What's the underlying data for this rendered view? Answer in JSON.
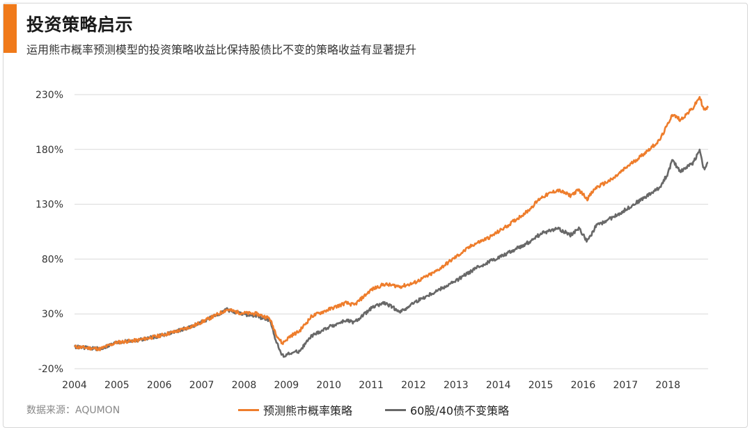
{
  "header": {
    "title": "投资策略启示",
    "subtitle": "运用熊市概率预测模型的投资策略收益比保持股债比不变的策略收益有显著提升"
  },
  "footer": {
    "source": "数据来源：AQUMON"
  },
  "colors": {
    "accent": "#f07a1a",
    "series_orange": "#ee7d2c",
    "series_gray": "#686868",
    "grid": "#d9d9d9"
  },
  "chart_data": {
    "type": "line",
    "title": "",
    "xlabel": "",
    "ylabel": "",
    "x_ticks": [
      "2004",
      "2005",
      "2006",
      "2007",
      "2008",
      "2009",
      "2010",
      "2011",
      "2012",
      "2013",
      "2014",
      "2015",
      "2016",
      "2017",
      "2018"
    ],
    "y_ticks": [
      "230%",
      "180%",
      "130%",
      "80%",
      "30%",
      "-20%"
    ],
    "ylim": [
      -20,
      230
    ],
    "xlim": [
      2004.0,
      2018.95
    ],
    "grid": "horizontal",
    "legend_position": "bottom",
    "series": [
      {
        "name": "预测熊市概率策略",
        "color": "#ee7d2c",
        "points": [
          [
            2004.0,
            0
          ],
          [
            2004.3,
            -1
          ],
          [
            2004.6,
            -2
          ],
          [
            2005.0,
            4
          ],
          [
            2005.5,
            6
          ],
          [
            2006.0,
            10
          ],
          [
            2006.4,
            14
          ],
          [
            2006.8,
            19
          ],
          [
            2007.3,
            28
          ],
          [
            2007.6,
            34
          ],
          [
            2007.9,
            31
          ],
          [
            2008.3,
            30
          ],
          [
            2008.6,
            26
          ],
          [
            2008.78,
            10
          ],
          [
            2008.9,
            3
          ],
          [
            2009.1,
            10
          ],
          [
            2009.3,
            14
          ],
          [
            2009.6,
            28
          ],
          [
            2010.0,
            34
          ],
          [
            2010.4,
            40
          ],
          [
            2010.6,
            38
          ],
          [
            2011.0,
            52
          ],
          [
            2011.3,
            57
          ],
          [
            2011.7,
            55
          ],
          [
            2012.0,
            58
          ],
          [
            2012.5,
            68
          ],
          [
            2013.0,
            82
          ],
          [
            2013.4,
            93
          ],
          [
            2013.8,
            100
          ],
          [
            2014.2,
            110
          ],
          [
            2014.7,
            124
          ],
          [
            2015.0,
            136
          ],
          [
            2015.4,
            143
          ],
          [
            2015.7,
            138
          ],
          [
            2015.9,
            143
          ],
          [
            2016.1,
            135
          ],
          [
            2016.3,
            145
          ],
          [
            2016.7,
            153
          ],
          [
            2017.0,
            163
          ],
          [
            2017.4,
            175
          ],
          [
            2017.8,
            188
          ],
          [
            2018.0,
            203
          ],
          [
            2018.1,
            212
          ],
          [
            2018.3,
            207
          ],
          [
            2018.6,
            218
          ],
          [
            2018.75,
            228
          ],
          [
            2018.85,
            216
          ],
          [
            2018.95,
            218
          ]
        ]
      },
      {
        "name": "60股/40债不变策略",
        "color": "#686868",
        "points": [
          [
            2004.0,
            0
          ],
          [
            2004.3,
            -1
          ],
          [
            2004.6,
            -2
          ],
          [
            2005.0,
            4
          ],
          [
            2005.5,
            6
          ],
          [
            2006.0,
            10
          ],
          [
            2006.4,
            14
          ],
          [
            2006.8,
            19
          ],
          [
            2007.3,
            28
          ],
          [
            2007.6,
            34
          ],
          [
            2007.9,
            30
          ],
          [
            2008.3,
            28
          ],
          [
            2008.6,
            24
          ],
          [
            2008.78,
            3
          ],
          [
            2008.9,
            -8
          ],
          [
            2009.1,
            -6
          ],
          [
            2009.3,
            -4
          ],
          [
            2009.6,
            10
          ],
          [
            2010.0,
            18
          ],
          [
            2010.4,
            24
          ],
          [
            2010.6,
            22
          ],
          [
            2011.0,
            35
          ],
          [
            2011.3,
            40
          ],
          [
            2011.7,
            32
          ],
          [
            2012.0,
            40
          ],
          [
            2012.5,
            50
          ],
          [
            2013.0,
            60
          ],
          [
            2013.4,
            70
          ],
          [
            2013.8,
            78
          ],
          [
            2014.2,
            85
          ],
          [
            2014.7,
            95
          ],
          [
            2015.0,
            103
          ],
          [
            2015.4,
            108
          ],
          [
            2015.7,
            102
          ],
          [
            2015.9,
            108
          ],
          [
            2016.1,
            96
          ],
          [
            2016.3,
            110
          ],
          [
            2016.7,
            118
          ],
          [
            2017.0,
            125
          ],
          [
            2017.4,
            135
          ],
          [
            2017.8,
            145
          ],
          [
            2018.0,
            158
          ],
          [
            2018.1,
            170
          ],
          [
            2018.3,
            160
          ],
          [
            2018.6,
            168
          ],
          [
            2018.75,
            180
          ],
          [
            2018.85,
            162
          ],
          [
            2018.95,
            168
          ]
        ]
      }
    ]
  }
}
